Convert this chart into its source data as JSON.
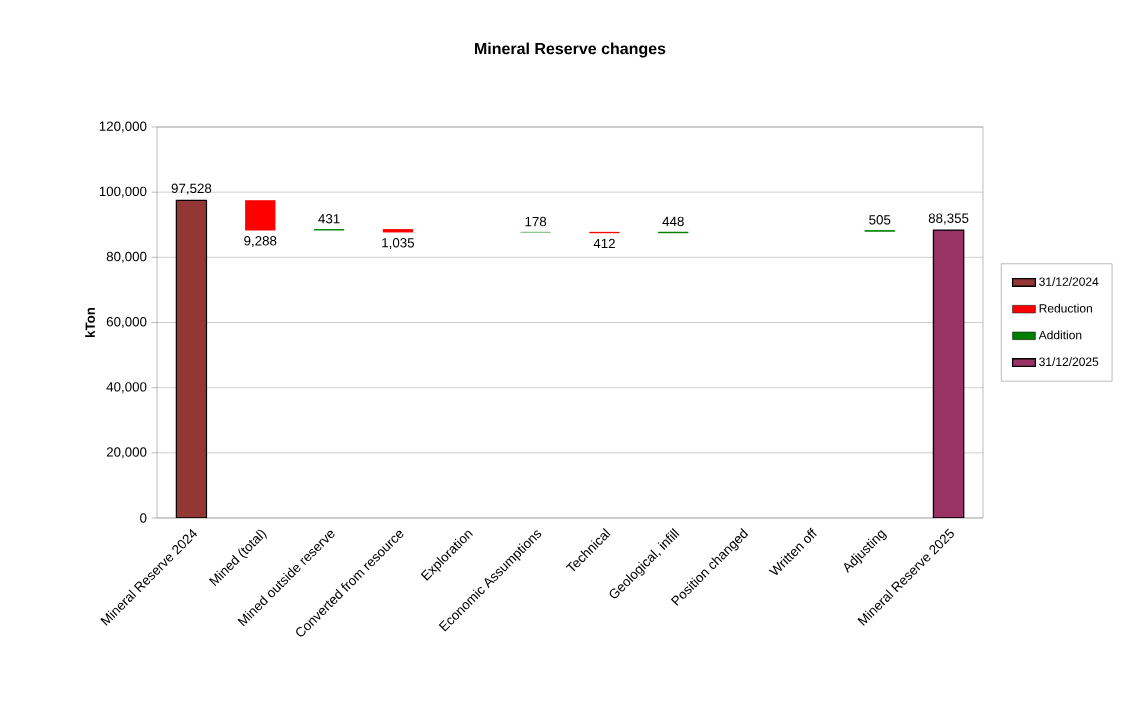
{
  "chart_data": {
    "type": "bar",
    "title": "Mineral Reserve changes",
    "ylabel": "kTon",
    "categories": [
      "Mineral Reserve 2024",
      "Mined (total)",
      "Mined outside reserve",
      "Converted from resource",
      "Exploration",
      "Economic Assumptions",
      "Technical",
      "Geological, infill",
      "Position changed",
      "Written off",
      "Adjusting",
      "Mineral Reserve 2025"
    ],
    "series": [
      {
        "name": "31/12/2024",
        "color": "#943634",
        "values": [
          97528,
          null,
          null,
          null,
          null,
          null,
          null,
          null,
          null,
          null,
          null,
          null
        ],
        "base": [
          0,
          null,
          null,
          null,
          null,
          null,
          null,
          null,
          null,
          null,
          null,
          null
        ],
        "value_labels": [
          "97,528",
          null,
          null,
          null,
          null,
          null,
          null,
          null,
          null,
          null,
          null,
          null
        ]
      },
      {
        "name": "Reduction",
        "color": "#ff0000",
        "values": [
          null,
          -9288,
          null,
          -1035,
          null,
          null,
          -412,
          null,
          null,
          null,
          null,
          null
        ],
        "base": [
          null,
          97528,
          null,
          88671,
          null,
          null,
          87814,
          null,
          null,
          null,
          null,
          null
        ],
        "value_labels": [
          null,
          "9,288",
          null,
          "1,035",
          null,
          null,
          "412",
          null,
          null,
          null,
          null,
          null
        ]
      },
      {
        "name": "Addition",
        "color": "#008000",
        "values": [
          null,
          null,
          431,
          null,
          null,
          178,
          null,
          448,
          null,
          null,
          505,
          null
        ],
        "base": [
          null,
          null,
          88240,
          null,
          null,
          87636,
          null,
          87402,
          null,
          null,
          87850,
          null
        ],
        "value_labels": [
          null,
          null,
          "431",
          null,
          null,
          "178",
          null,
          "448",
          null,
          null,
          "505",
          null
        ]
      },
      {
        "name": "31/12/2025",
        "color": "#993366",
        "values": [
          null,
          null,
          null,
          null,
          null,
          null,
          null,
          null,
          null,
          null,
          null,
          88355
        ],
        "base": [
          null,
          null,
          null,
          null,
          null,
          null,
          null,
          null,
          null,
          null,
          null,
          0
        ],
        "value_labels": [
          null,
          null,
          null,
          null,
          null,
          null,
          null,
          null,
          null,
          null,
          null,
          "88,355"
        ]
      }
    ],
    "ylim": [
      0,
      120000
    ],
    "yticks": [
      0,
      {
        "value": 20000,
        "label": "20,000"
      },
      {
        "value": 40000,
        "label": "40,000"
      },
      {
        "value": 60000,
        "label": "60,000"
      },
      {
        "value": 80000,
        "label": "80,000"
      },
      {
        "value": 100000,
        "label": "100,000"
      },
      {
        "value": 120000,
        "label": "120,000"
      }
    ],
    "grid": "y",
    "legend": "right"
  }
}
